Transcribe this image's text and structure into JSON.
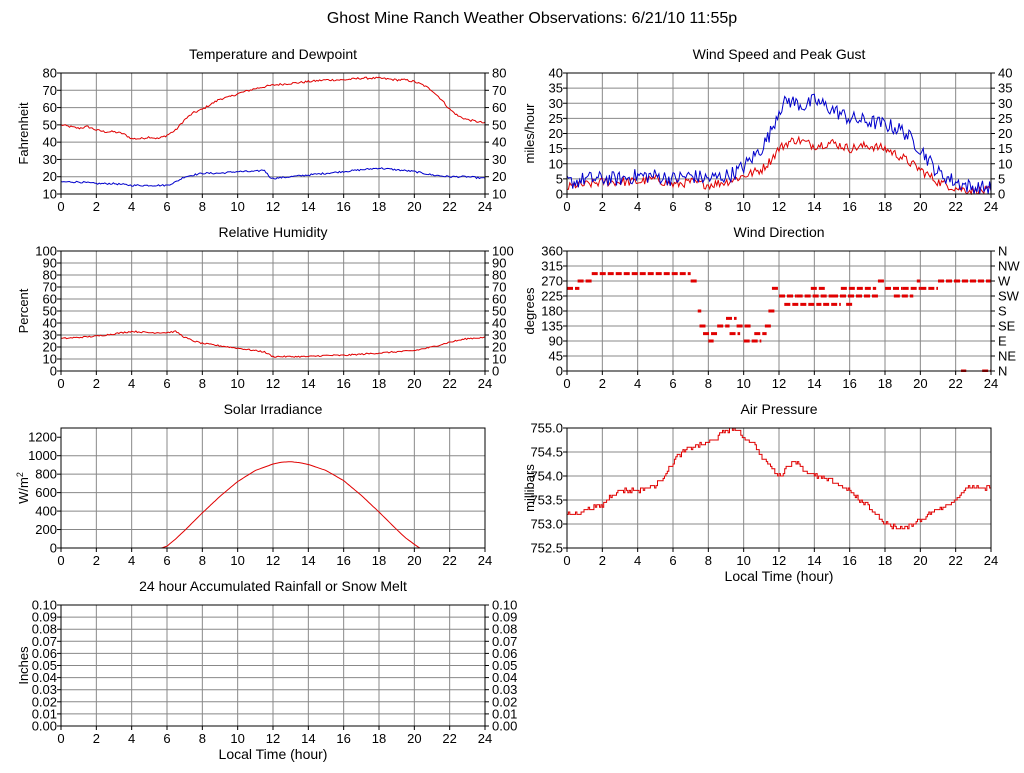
{
  "page": {
    "title": "Ghost Mine Ranch Weather Observations: 6/21/10 11:55p"
  },
  "colors": {
    "red": "#e00000",
    "blue": "#0000cc",
    "grid": "#888888",
    "axis": "#000000"
  },
  "chart_data": [
    {
      "id": "temp",
      "type": "line",
      "title": "Temperature and Dewpoint",
      "ylabel": "Fahrenheit",
      "xlabel": "",
      "xlim": [
        0,
        24
      ],
      "ylim": [
        10,
        80
      ],
      "xticks": [
        0,
        2,
        4,
        6,
        8,
        10,
        12,
        14,
        16,
        18,
        20,
        22,
        24
      ],
      "yticks": [
        10,
        20,
        30,
        40,
        50,
        60,
        70,
        80
      ],
      "ytick_labels": [
        "10",
        "20",
        "30",
        "40",
        "50",
        "60",
        "70",
        "80"
      ],
      "right_ticks": true,
      "grid": true,
      "series": [
        {
          "color": "red",
          "style": "line",
          "jitter": 0.6,
          "x": [
            0,
            0.5,
            1,
            1.5,
            2,
            2.5,
            3,
            3.5,
            4,
            4.5,
            5,
            5.5,
            6,
            6.5,
            7,
            7.5,
            8,
            8.5,
            9,
            9.5,
            10,
            11,
            12,
            13,
            14,
            15,
            16,
            17,
            18,
            19,
            19.5,
            20,
            20.5,
            21,
            21.5,
            22,
            22.5,
            23,
            23.5,
            24
          ],
          "y": [
            50,
            49,
            48,
            49,
            47,
            46,
            46,
            45,
            42,
            42,
            43,
            42,
            44,
            47,
            53,
            57,
            59,
            62,
            65,
            66,
            68,
            71,
            73,
            74,
            75,
            76,
            76,
            77,
            77,
            76,
            76,
            75,
            73,
            70,
            65,
            59,
            55,
            53,
            52,
            51
          ]
        },
        {
          "color": "blue",
          "style": "line",
          "jitter": 0.5,
          "x": [
            0,
            1,
            2,
            3,
            4,
            5,
            6,
            6.5,
            7,
            7.5,
            8,
            9,
            10,
            11,
            11.5,
            11.8,
            12,
            13,
            14,
            15,
            16,
            17,
            18,
            19,
            20,
            21,
            22,
            23,
            24
          ],
          "y": [
            17,
            17,
            16,
            16,
            15,
            15,
            15,
            17,
            20,
            21,
            22,
            22,
            23,
            23,
            24,
            20,
            19,
            20,
            21,
            22,
            23,
            24,
            25,
            24,
            23,
            21,
            20,
            20,
            19
          ]
        }
      ]
    },
    {
      "id": "wind",
      "type": "line",
      "title": "Wind Speed and Peak Gust",
      "ylabel": "miles/hour",
      "xlabel": "",
      "xlim": [
        0,
        24
      ],
      "ylim": [
        0,
        40
      ],
      "xticks": [
        0,
        2,
        4,
        6,
        8,
        10,
        12,
        14,
        16,
        18,
        20,
        22,
        24
      ],
      "yticks": [
        0,
        5,
        10,
        15,
        20,
        25,
        30,
        35,
        40
      ],
      "ytick_labels": [
        "0",
        "5",
        "10",
        "15",
        "20",
        "25",
        "30",
        "35",
        "40"
      ],
      "right_ticks": true,
      "grid": true,
      "series": [
        {
          "color": "red",
          "style": "line",
          "jitter": 1.5,
          "x": [
            0,
            0.5,
            1,
            2,
            3,
            4,
            5,
            6,
            7,
            8,
            9,
            9.5,
            10,
            10.5,
            11,
            11.5,
            12,
            12.5,
            13,
            14,
            15,
            16,
            17,
            18,
            19,
            19.5,
            20,
            20.5,
            21,
            22,
            23,
            24
          ],
          "y": [
            2,
            3,
            3,
            4,
            4,
            4,
            5,
            3,
            4,
            3,
            4,
            5,
            6,
            7,
            8,
            11,
            15,
            17,
            18,
            16,
            17,
            15,
            16,
            15,
            12,
            10,
            8,
            6,
            4,
            2,
            1,
            1
          ]
        },
        {
          "color": "blue",
          "style": "line",
          "jitter": 2.5,
          "x": [
            0,
            0.5,
            1,
            2,
            3,
            4,
            5,
            6,
            7,
            8,
            9,
            9.5,
            10,
            10.5,
            11,
            11.5,
            12,
            12.5,
            13,
            13.5,
            14,
            15,
            16,
            17,
            18,
            18.5,
            19,
            19.5,
            20,
            20.5,
            21,
            22,
            23,
            24
          ],
          "y": [
            4,
            4,
            5,
            5,
            5,
            6,
            6,
            5,
            6,
            5,
            6,
            7,
            9,
            12,
            15,
            20,
            28,
            31,
            30,
            29,
            31,
            28,
            25,
            24,
            23,
            22,
            21,
            18,
            15,
            11,
            7,
            4,
            2,
            2
          ]
        }
      ]
    },
    {
      "id": "rh",
      "type": "line",
      "title": "Relative Humidity",
      "ylabel": "Percent",
      "xlabel": "",
      "xlim": [
        0,
        24
      ],
      "ylim": [
        0,
        100
      ],
      "xticks": [
        0,
        2,
        4,
        6,
        8,
        10,
        12,
        14,
        16,
        18,
        20,
        22,
        24
      ],
      "yticks": [
        0,
        10,
        20,
        30,
        40,
        50,
        60,
        70,
        80,
        90,
        100
      ],
      "ytick_labels": [
        "0",
        "10",
        "20",
        "30",
        "40",
        "50",
        "60",
        "70",
        "80",
        "90",
        "100"
      ],
      "right_ticks": true,
      "grid": true,
      "series": [
        {
          "color": "red",
          "style": "line",
          "jitter": 0.6,
          "x": [
            0,
            1,
            2,
            3,
            4,
            5,
            6,
            6.5,
            7,
            7.5,
            8,
            9,
            10,
            11,
            11.5,
            12,
            13,
            14,
            15,
            16,
            17,
            18,
            19,
            20,
            21,
            22,
            23,
            24
          ],
          "y": [
            27,
            28,
            29,
            31,
            33,
            32,
            32,
            33,
            28,
            25,
            23,
            21,
            19,
            17,
            16,
            12,
            12,
            12,
            13,
            13,
            14,
            15,
            16,
            17,
            20,
            24,
            27,
            28
          ]
        }
      ]
    },
    {
      "id": "wdir",
      "type": "scatter",
      "title": "Wind Direction",
      "ylabel": "degrees",
      "xlabel": "",
      "xlim": [
        0,
        24
      ],
      "ylim": [
        0,
        360
      ],
      "xticks": [
        0,
        2,
        4,
        6,
        8,
        10,
        12,
        14,
        16,
        18,
        20,
        22,
        24
      ],
      "yticks": [
        0,
        45,
        90,
        135,
        180,
        225,
        270,
        315,
        360
      ],
      "ytick_labels": [
        "0",
        "45",
        "90",
        "135",
        "180",
        "225",
        "270",
        "315",
        "360"
      ],
      "right_labels": [
        "N",
        "NE",
        "E",
        "SE",
        "S",
        "SW",
        "W",
        "NW",
        "N"
      ],
      "right_ticks": false,
      "grid": true,
      "series": [
        {
          "color": "red",
          "style": "segments",
          "segments": [
            [
              0.0,
              0.7,
              248
            ],
            [
              0.6,
              1.4,
              270
            ],
            [
              1.4,
              7.0,
              292
            ],
            [
              7.0,
              7.4,
              270
            ],
            [
              7.4,
              7.6,
              180
            ],
            [
              7.5,
              7.9,
              135
            ],
            [
              7.7,
              8.5,
              112
            ],
            [
              8.0,
              8.3,
              90
            ],
            [
              8.5,
              9.2,
              135
            ],
            [
              9.0,
              9.6,
              158
            ],
            [
              9.2,
              9.8,
              112
            ],
            [
              9.6,
              10.4,
              135
            ],
            [
              10.0,
              11.0,
              90
            ],
            [
              10.6,
              11.3,
              112
            ],
            [
              11.2,
              11.6,
              135
            ],
            [
              11.4,
              11.8,
              180
            ],
            [
              11.6,
              12.0,
              248
            ],
            [
              12.0,
              13.0,
              225
            ],
            [
              12.3,
              14.4,
              200
            ],
            [
              13.0,
              15.0,
              225
            ],
            [
              13.8,
              14.6,
              248
            ],
            [
              14.5,
              15.5,
              200
            ],
            [
              15.0,
              17.6,
              225
            ],
            [
              15.5,
              17.5,
              248
            ],
            [
              15.8,
              16.2,
              200
            ],
            [
              17.6,
              18.0,
              270
            ],
            [
              18.0,
              19.0,
              248
            ],
            [
              18.5,
              19.6,
              225
            ],
            [
              19.0,
              20.0,
              248
            ],
            [
              19.8,
              20.0,
              270
            ],
            [
              20.0,
              21.0,
              248
            ],
            [
              21.0,
              24.0,
              270
            ],
            [
              22.3,
              22.6,
              0
            ],
            [
              23.5,
              24.0,
              0
            ]
          ]
        }
      ]
    },
    {
      "id": "solar",
      "type": "line",
      "title": "Solar Irradiance",
      "ylabel": "W/m",
      "ylabel_sup": "2",
      "xlabel": "",
      "xlim": [
        0,
        24
      ],
      "ylim": [
        0,
        1300
      ],
      "xticks": [
        0,
        2,
        4,
        6,
        8,
        10,
        12,
        14,
        16,
        18,
        20,
        22,
        24
      ],
      "yticks": [
        0,
        200,
        400,
        600,
        800,
        1000,
        1200
      ],
      "ytick_labels": [
        "0",
        "200",
        "400",
        "600",
        "800",
        "1000",
        "1200"
      ],
      "right_ticks": false,
      "grid": true,
      "series": [
        {
          "color": "red",
          "style": "line",
          "jitter": 0,
          "x": [
            0,
            5.7,
            6.0,
            6.5,
            7,
            8,
            9,
            10,
            11,
            12,
            12.5,
            13,
            13.5,
            14,
            15,
            16,
            17,
            18,
            19,
            19.5,
            20,
            20.3,
            24
          ],
          "y": [
            0,
            0,
            20,
            100,
            190,
            380,
            560,
            720,
            840,
            910,
            930,
            935,
            925,
            905,
            840,
            730,
            570,
            390,
            200,
            110,
            40,
            0,
            0
          ]
        }
      ]
    },
    {
      "id": "pressure",
      "type": "line",
      "title": "Air Pressure",
      "ylabel": "millibars",
      "xlabel": "Local Time (hour)",
      "xlim": [
        0,
        24
      ],
      "ylim": [
        752.5,
        755.0
      ],
      "xticks": [
        0,
        2,
        4,
        6,
        8,
        10,
        12,
        14,
        16,
        18,
        20,
        22,
        24
      ],
      "yticks": [
        752.5,
        753.0,
        753.5,
        754.0,
        754.5,
        755.0
      ],
      "ytick_labels": [
        "752.5",
        "753.0",
        "753.5",
        "754.0",
        "754.5",
        "755.0"
      ],
      "right_ticks": false,
      "grid": true,
      "series": [
        {
          "color": "red",
          "style": "step",
          "jitter": 0.04,
          "x": [
            0,
            0.5,
            1,
            2,
            2.5,
            3,
            4,
            5,
            5.5,
            6,
            6.5,
            7,
            8,
            8.5,
            9,
            9.5,
            10,
            10.5,
            11,
            11.5,
            12,
            12.5,
            13,
            13.5,
            14,
            15,
            16,
            16.5,
            17,
            17.5,
            18,
            18.5,
            19,
            19.5,
            20,
            20.5,
            21,
            22,
            22.5,
            23,
            23.5,
            24
          ],
          "y": [
            753.2,
            753.2,
            753.3,
            753.4,
            753.6,
            753.7,
            753.7,
            753.8,
            754.0,
            754.3,
            754.5,
            754.6,
            754.7,
            754.8,
            754.95,
            755.0,
            754.8,
            754.7,
            754.4,
            754.2,
            754.0,
            754.2,
            754.3,
            754.1,
            754.0,
            753.9,
            753.7,
            753.5,
            753.4,
            753.2,
            753.0,
            752.95,
            752.9,
            753.0,
            753.1,
            753.2,
            753.3,
            753.5,
            753.7,
            753.8,
            753.7,
            753.8
          ]
        }
      ]
    },
    {
      "id": "rain",
      "type": "line",
      "title": "24 hour Accumulated Rainfall or Snow Melt",
      "ylabel": "Inches",
      "xlabel": "Local Time (hour)",
      "xlim": [
        0,
        24
      ],
      "ylim": [
        0,
        0.1
      ],
      "xticks": [
        0,
        2,
        4,
        6,
        8,
        10,
        12,
        14,
        16,
        18,
        20,
        22,
        24
      ],
      "yticks": [
        0,
        0.01,
        0.02,
        0.03,
        0.04,
        0.05,
        0.06,
        0.07,
        0.08,
        0.09,
        0.1
      ],
      "ytick_labels": [
        "0.00",
        "0.01",
        "0.02",
        "0.03",
        "0.04",
        "0.05",
        "0.06",
        "0.07",
        "0.08",
        "0.09",
        "0.10"
      ],
      "right_ticks": true,
      "grid": true,
      "series": [
        {
          "color": "red",
          "style": "line",
          "jitter": 0,
          "x": [
            0,
            24
          ],
          "y": [
            0,
            0
          ]
        }
      ]
    }
  ]
}
